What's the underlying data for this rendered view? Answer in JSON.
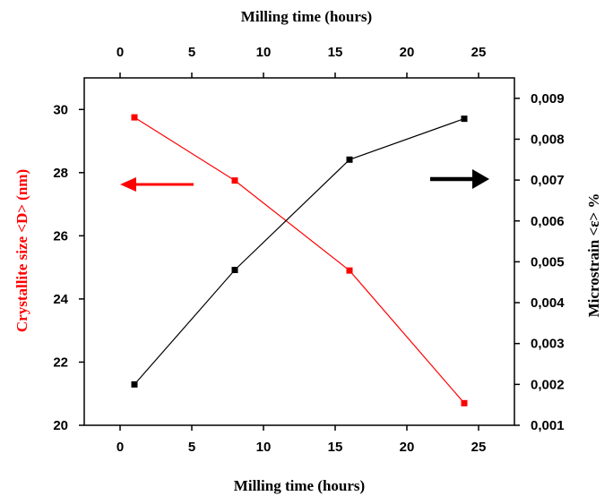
{
  "chart_data": {
    "type": "line",
    "title": "",
    "top_xlabel": "Milling time (hours)",
    "xlabel": "Milling time (hours)",
    "ylabel_left": "Crystallite size <D> (nm)",
    "ylabel_right": "Microstrain <ε> %",
    "xlim": [
      -2.5,
      27.5
    ],
    "x_ticks": [
      0,
      5,
      10,
      15,
      20,
      25
    ],
    "x_tick_labels": [
      "0",
      "5",
      "10",
      "15",
      "20",
      "25"
    ],
    "ylim_left": [
      20,
      31
    ],
    "y_left_ticks": [
      20,
      22,
      24,
      26,
      28,
      30
    ],
    "y_left_tick_labels": [
      "20",
      "22",
      "24",
      "26",
      "28",
      "30"
    ],
    "ylim_right": [
      0.001,
      0.0095
    ],
    "y_right_ticks": [
      0.001,
      0.002,
      0.003,
      0.004,
      0.005,
      0.006,
      0.007,
      0.008,
      0.009
    ],
    "y_right_tick_labels": [
      "0,001",
      "0,002",
      "0,003",
      "0,004",
      "0,005",
      "0,006",
      "0,007",
      "0,008",
      "0,009"
    ],
    "grid": false,
    "series": [
      {
        "axis": "left",
        "color": "#ff0000",
        "x": [
          1,
          8,
          16,
          24
        ],
        "y": [
          29.75,
          27.75,
          24.9,
          20.7
        ]
      },
      {
        "axis": "right",
        "color": "#000000",
        "x": [
          1,
          8,
          16,
          24
        ],
        "y": [
          0.002,
          0.0048,
          0.0075,
          0.0085
        ]
      }
    ],
    "annotations": [
      {
        "type": "arrow",
        "direction": "left",
        "color": "#ff0000",
        "meaning": "left axis"
      },
      {
        "type": "arrow",
        "direction": "right",
        "color": "#000000",
        "meaning": "right axis"
      }
    ],
    "colors": {
      "left_axis_label": "#ff0000",
      "axis": "#000000"
    }
  }
}
